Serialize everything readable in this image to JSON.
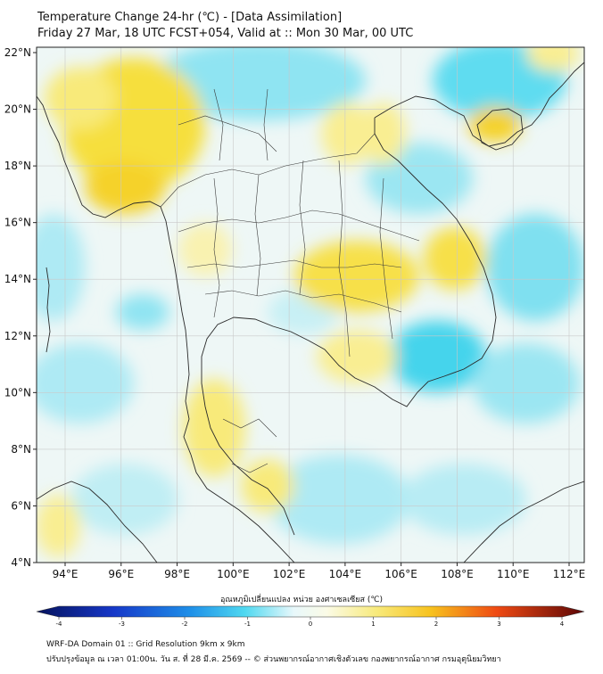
{
  "title_line1": "Temperature Change 24-hr (℃) - [Data Assimilation]",
  "title_line2": "Friday 27 Mar, 18 UTC FCST+054, Valid at :: Mon 30 Mar, 00 UTC",
  "lat_labels": [
    "22°N",
    "20°N",
    "18°N",
    "16°N",
    "14°N",
    "12°N",
    "10°N",
    "8°N",
    "6°N",
    "4°N"
  ],
  "lon_labels": [
    "94°E",
    "96°E",
    "98°E",
    "100°E",
    "102°E",
    "104°E",
    "106°E",
    "108°E",
    "110°E",
    "112°E"
  ],
  "colorbar": {
    "label": "อุณหภูมิเปลี่ยนแปลง หน่วย องศาเซลเซียส (℃)",
    "ticks": [
      "-4",
      "-3",
      "-2",
      "-1",
      "0",
      "1",
      "2",
      "3",
      "4"
    ],
    "min": -4,
    "max": 4
  },
  "footer_line1": "WRF-DA Domain 01 :: Grid Resolution 9km x 9km",
  "footer_line2": "ปรับปรุงข้อมูล ณ เวลา 01:00น. วัน ส. ที่ 28 มี.ค. 2569 -- © ส่วนพยากรณ์อากาศเชิงตัวเลข กองพยากรณ์อากาศ กรมอุตุนิยมวิทยา",
  "colors": {
    "warm": "#f7dc2c",
    "cool": "#3fd6ec",
    "neutral": "#eef7f6",
    "border": "#2a2a2a"
  }
}
